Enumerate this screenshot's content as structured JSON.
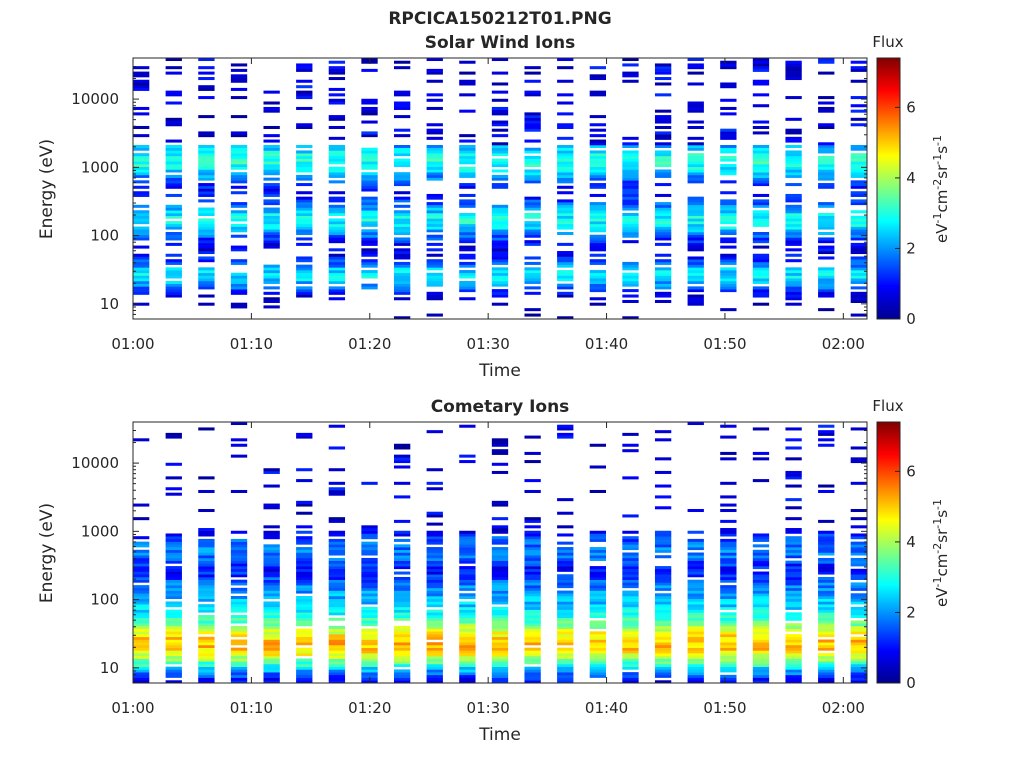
{
  "figure_title": "RPCICA150212T01.PNG",
  "colorbar": {
    "label": "Flux",
    "unit_prefix": "eV",
    "unit_sup1": "-1",
    "unit_mid1": "cm",
    "unit_sup2": "-2",
    "unit_mid2": "sr",
    "unit_sup3": "-1",
    "unit_mid3": "s",
    "unit_sup4": "-1",
    "ticks": [
      "0",
      "2",
      "4",
      "6"
    ],
    "range": [
      0,
      7.4
    ],
    "colormap": "jet"
  },
  "chart_data": [
    {
      "type": "heatmap",
      "title": "Solar Wind Ions",
      "xlabel": "Time",
      "ylabel": "Energy (eV)",
      "x_ticks": [
        "01:00",
        "01:10",
        "01:20",
        "01:30",
        "01:40",
        "01:50",
        "02:00"
      ],
      "x_range_minutes": [
        0,
        62
      ],
      "y_ticks": [
        "10",
        "100",
        "1000",
        "10000"
      ],
      "y_scale": "log",
      "y_range_eV": [
        6,
        40000
      ],
      "n_time_bins": 23,
      "n_energy_bins": 96,
      "zlabel": "Flux",
      "zrange": [
        0,
        7.4
      ],
      "profile": {
        "low_band_eV": 25,
        "low_band_level": 2.6,
        "mid_band_eV": 160,
        "mid_band_level": 2.8,
        "upper_band_eV": 1200,
        "upper_band_level": 3.0,
        "high_energy_level": 0.4
      }
    },
    {
      "type": "heatmap",
      "title": "Cometary Ions",
      "xlabel": "Time",
      "ylabel": "Energy (eV)",
      "x_ticks": [
        "01:00",
        "01:10",
        "01:20",
        "01:30",
        "01:40",
        "01:50",
        "02:00"
      ],
      "x_range_minutes": [
        0,
        62
      ],
      "y_ticks": [
        "10",
        "100",
        "1000",
        "10000"
      ],
      "y_scale": "log",
      "y_range_eV": [
        6,
        40000
      ],
      "n_time_bins": 23,
      "n_energy_bins": 96,
      "zlabel": "Flux",
      "zrange": [
        0,
        7.4
      ],
      "profile": {
        "peak_eV": 20,
        "peak_level": 4.8,
        "mid_band_eV": 100,
        "mid_band_level": 3.4,
        "upper_band_eV": 500,
        "upper_band_level": 1.8,
        "high_energy_level": 0.4
      }
    }
  ]
}
